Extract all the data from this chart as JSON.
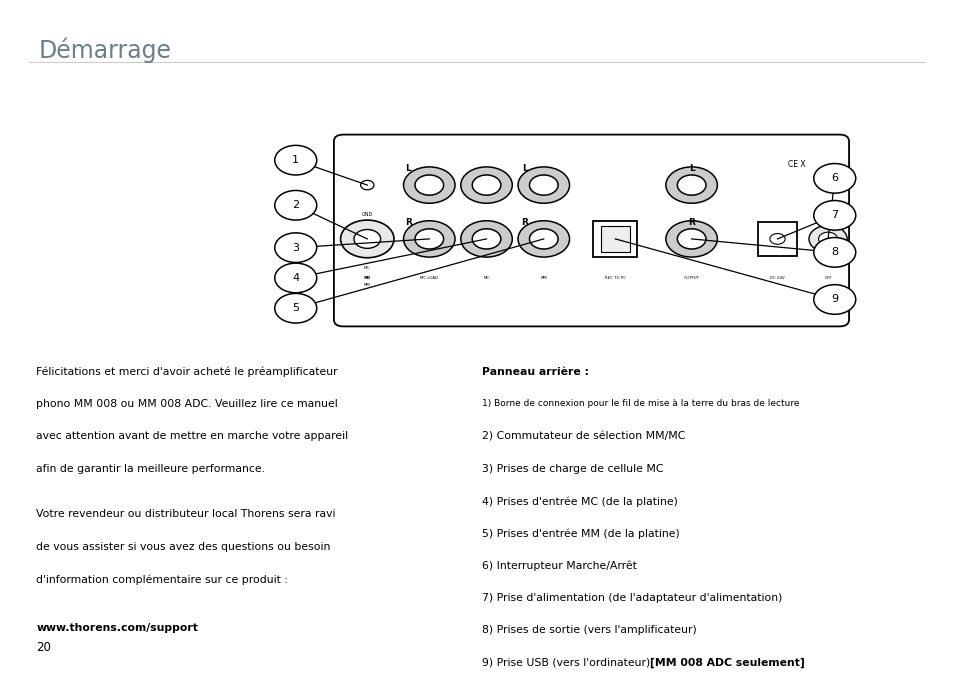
{
  "title": "Démarrage",
  "title_color": "#6a7f8a",
  "bg_color": "#ffffff",
  "page_number": "20",
  "left_para1_lines": [
    "Félicitations et merci d'avoir acheté le préamplificateur",
    "phono MM 008 ou MM 008 ADC. Veuillez lire ce manuel",
    "avec attention avant de mettre en marche votre appareil",
    "afin de garantir la meilleure performance."
  ],
  "left_para2_lines": [
    "Votre revendeur ou distributeur local Thorens sera ravi",
    "de vous assister si vous avez des questions ou besoin",
    "d'information complémentaire sur ce produit :"
  ],
  "left_link": "www.thorens.com/support",
  "right_header": "Panneau arrière :",
  "right_items": [
    "1) Borne de connexion pour le fil de mise à la terre du bras de lecture",
    "2) Commutateur de sélection MM/MC",
    "3) Prises de charge de cellule MC",
    "4) Prises d'entrée MC (de la platine)",
    "5) Prises d'entrée MM (de la platine)",
    "6) Interrupteur Marche/Arrêt",
    "7) Prise d'alimentation (de l'adaptateur d'alimentation)",
    "8) Prises de sortie (vers l'amplificateur)"
  ],
  "right_item9_normal": "9) Prise USB (vers l'ordinateur) ",
  "right_item9_bold": "[MM 008 ADC seulement]"
}
